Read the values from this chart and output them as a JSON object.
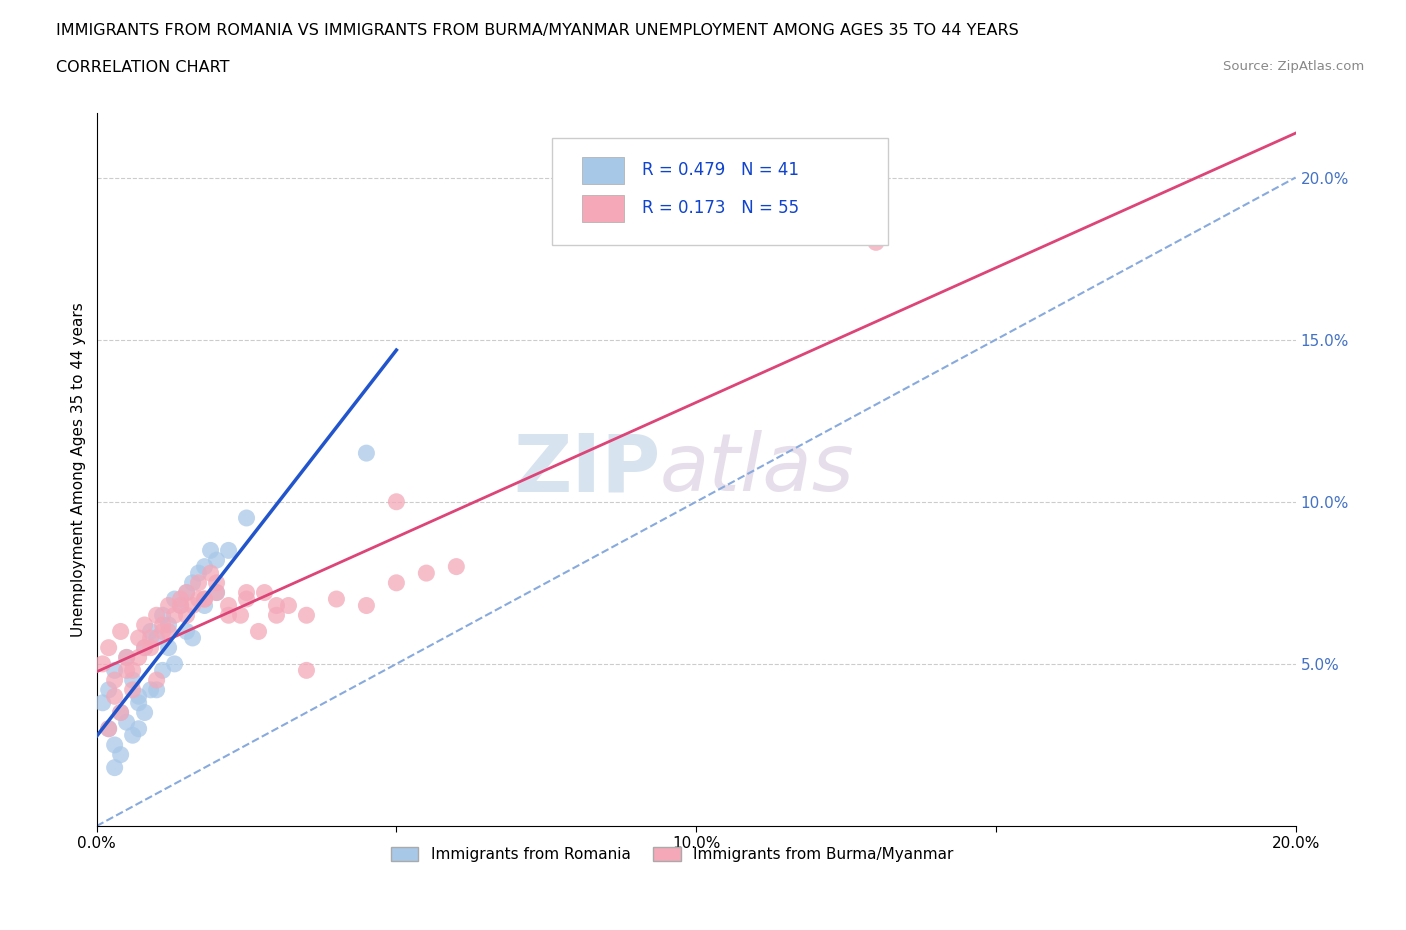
{
  "title": "IMMIGRANTS FROM ROMANIA VS IMMIGRANTS FROM BURMA/MYANMAR UNEMPLOYMENT AMONG AGES 35 TO 44 YEARS",
  "subtitle": "CORRELATION CHART",
  "source": "Source: ZipAtlas.com",
  "ylabel": "Unemployment Among Ages 35 to 44 years",
  "xlim": [
    0.0,
    0.2
  ],
  "ylim": [
    0.0,
    0.22
  ],
  "yticks": [
    0.0,
    0.05,
    0.1,
    0.15,
    0.2
  ],
  "xticks": [
    0.0,
    0.05,
    0.1,
    0.15,
    0.2
  ],
  "xtick_labels": [
    "0.0%",
    "",
    "10.0%",
    "",
    "20.0%"
  ],
  "ytick_labels_right": [
    "",
    "5.0%",
    "10.0%",
    "15.0%",
    "20.0%"
  ],
  "romania_color": "#a8c8e8",
  "burma_color": "#f4a8b8",
  "romania_line_color": "#2255cc",
  "burma_line_color": "#dd4477",
  "diagonal_color": "#88aadd",
  "R_romania": 0.479,
  "N_romania": 41,
  "R_burma": 0.173,
  "N_burma": 55,
  "watermark_zip": "ZIP",
  "watermark_atlas": "atlas",
  "legend_label_romania": "Immigrants from Romania",
  "legend_label_burma": "Immigrants from Burma/Myanmar",
  "romania_x": [
    0.001,
    0.002,
    0.003,
    0.004,
    0.005,
    0.006,
    0.007,
    0.008,
    0.009,
    0.01,
    0.011,
    0.012,
    0.013,
    0.014,
    0.015,
    0.016,
    0.017,
    0.018,
    0.019,
    0.02,
    0.002,
    0.003,
    0.005,
    0.007,
    0.009,
    0.012,
    0.015,
    0.018,
    0.022,
    0.025,
    0.004,
    0.006,
    0.008,
    0.01,
    0.013,
    0.016,
    0.02,
    0.003,
    0.007,
    0.011,
    0.045
  ],
  "romania_y": [
    0.038,
    0.042,
    0.048,
    0.035,
    0.052,
    0.045,
    0.04,
    0.055,
    0.06,
    0.058,
    0.065,
    0.062,
    0.07,
    0.068,
    0.072,
    0.075,
    0.078,
    0.08,
    0.085,
    0.082,
    0.03,
    0.025,
    0.032,
    0.038,
    0.042,
    0.055,
    0.06,
    0.068,
    0.085,
    0.095,
    0.022,
    0.028,
    0.035,
    0.042,
    0.05,
    0.058,
    0.072,
    0.018,
    0.03,
    0.048,
    0.115
  ],
  "burma_x": [
    0.001,
    0.002,
    0.003,
    0.004,
    0.005,
    0.006,
    0.007,
    0.008,
    0.009,
    0.01,
    0.011,
    0.012,
    0.013,
    0.014,
    0.015,
    0.016,
    0.017,
    0.018,
    0.019,
    0.02,
    0.022,
    0.025,
    0.028,
    0.03,
    0.035,
    0.04,
    0.045,
    0.05,
    0.055,
    0.06,
    0.003,
    0.005,
    0.007,
    0.009,
    0.012,
    0.015,
    0.018,
    0.022,
    0.025,
    0.03,
    0.004,
    0.006,
    0.008,
    0.011,
    0.014,
    0.017,
    0.02,
    0.024,
    0.027,
    0.032,
    0.002,
    0.01,
    0.035,
    0.05,
    0.13
  ],
  "burma_y": [
    0.05,
    0.055,
    0.045,
    0.06,
    0.052,
    0.048,
    0.058,
    0.062,
    0.055,
    0.065,
    0.06,
    0.068,
    0.065,
    0.07,
    0.072,
    0.068,
    0.075,
    0.07,
    0.078,
    0.075,
    0.065,
    0.07,
    0.072,
    0.068,
    0.065,
    0.07,
    0.068,
    0.075,
    0.078,
    0.08,
    0.04,
    0.048,
    0.052,
    0.058,
    0.06,
    0.065,
    0.07,
    0.068,
    0.072,
    0.065,
    0.035,
    0.042,
    0.055,
    0.062,
    0.068,
    0.07,
    0.072,
    0.065,
    0.06,
    0.068,
    0.03,
    0.045,
    0.048,
    0.1,
    0.18
  ]
}
